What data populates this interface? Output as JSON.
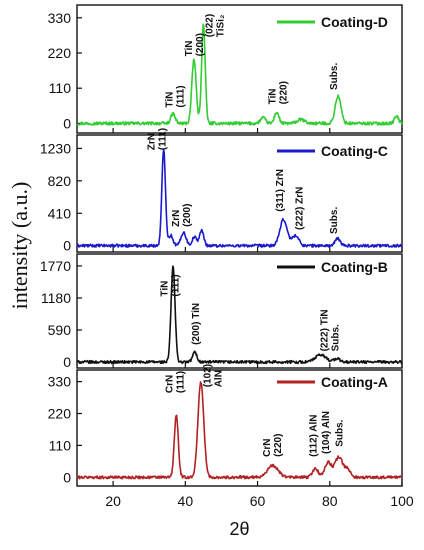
{
  "chart_data": {
    "type": "line",
    "xlabel": "2θ",
    "ylabel": "intensity (a.u.)",
    "xlim": [
      10,
      100
    ],
    "xticks": [
      20,
      40,
      60,
      80,
      100
    ],
    "xtick_labels": [
      "20",
      "40",
      "60",
      "80",
      "100"
    ],
    "panels": [
      {
        "name": "Coating-D",
        "color": "#33cc33",
        "ylim": [
          -30,
          370
        ],
        "yticks": [
          0,
          110,
          220,
          330
        ],
        "ytick_labels": [
          "0",
          "110",
          "220",
          "330"
        ],
        "peaks": [
          {
            "x": 36.6,
            "height": 30,
            "width": 0.6
          },
          {
            "x": 42.4,
            "height": 200,
            "width": 0.6
          },
          {
            "x": 45.0,
            "height": 310,
            "width": 0.5
          },
          {
            "x": 61.5,
            "height": 18,
            "width": 0.7
          },
          {
            "x": 65.3,
            "height": 35,
            "width": 0.6
          },
          {
            "x": 72.0,
            "height": 12,
            "width": 1.0
          },
          {
            "x": 82.3,
            "height": 85,
            "width": 0.8
          },
          {
            "x": 98.5,
            "height": 22,
            "width": 0.6
          }
        ],
        "annotations": [
          {
            "x": 36.5,
            "y": 40,
            "lines": [
              "TiN",
              "(111)"
            ]
          },
          {
            "x": 41.8,
            "y": 200,
            "lines": [
              "TiN",
              "(200)"
            ]
          },
          {
            "x": 47.5,
            "y": 260,
            "lines": [
              "(022)",
              "TiSi₂"
            ]
          },
          {
            "x": 65.0,
            "y": 50,
            "lines": [
              "TiN",
              "(220)"
            ]
          },
          {
            "x": 82.0,
            "y": 95,
            "lines": [
              "Subs."
            ]
          }
        ]
      },
      {
        "name": "Coating-C",
        "color": "#1a1acc",
        "ylim": [
          -80,
          1400
        ],
        "yticks": [
          0,
          410,
          820,
          1230
        ],
        "ytick_labels": [
          "0",
          "410",
          "820",
          "1230"
        ],
        "peaks": [
          {
            "x": 34.0,
            "height": 1220,
            "width": 0.5
          },
          {
            "x": 36.0,
            "height": 130,
            "width": 0.6
          },
          {
            "x": 39.5,
            "height": 170,
            "width": 0.7
          },
          {
            "x": 42.5,
            "height": 110,
            "width": 0.6
          },
          {
            "x": 44.5,
            "height": 190,
            "width": 0.6
          },
          {
            "x": 67.2,
            "height": 330,
            "width": 1.0
          },
          {
            "x": 70.5,
            "height": 130,
            "width": 0.9
          },
          {
            "x": 82.2,
            "height": 90,
            "width": 0.7
          }
        ],
        "annotations": [
          {
            "x": 31.5,
            "y": 1170,
            "lines": [
              "ZrN",
              "(111)"
            ]
          },
          {
            "x": 38.3,
            "y": 200,
            "lines": [
              "ZrN",
              "(200)"
            ]
          },
          {
            "x": 67.0,
            "y": 390,
            "lines": [
              "(311) ZrN"
            ]
          },
          {
            "x": 72.5,
            "y": 160,
            "lines": [
              "(222) ZrN"
            ]
          },
          {
            "x": 82.0,
            "y": 110,
            "lines": [
              "Subs."
            ]
          }
        ]
      },
      {
        "name": "Coating-B",
        "color": "#111111",
        "ylim": [
          -110,
          1990
        ],
        "yticks": [
          0,
          590,
          1180,
          1770
        ],
        "ytick_labels": [
          "0",
          "590",
          "1180",
          "1770"
        ],
        "peaks": [
          {
            "x": 36.6,
            "height": 1760,
            "width": 0.55
          },
          {
            "x": 42.6,
            "height": 180,
            "width": 0.6
          },
          {
            "x": 77.5,
            "height": 130,
            "width": 1.5
          },
          {
            "x": 82.0,
            "height": 60,
            "width": 0.8
          }
        ],
        "annotations": [
          {
            "x": 35.0,
            "y": 1150,
            "lines": [
              "TiN",
              "(111)"
            ]
          },
          {
            "x": 43.8,
            "y": 260,
            "lines": [
              "(200)  TiN"
            ]
          },
          {
            "x": 79.3,
            "y": 140,
            "lines": [
              "(222) TiN",
              "Subs."
            ]
          }
        ]
      },
      {
        "name": "Coating-A",
        "color": "#b22222",
        "ylim": [
          -30,
          370
        ],
        "yticks": [
          0,
          110,
          220,
          330
        ],
        "ytick_labels": [
          "0",
          "110",
          "220",
          "330"
        ],
        "peaks": [
          {
            "x": 37.5,
            "height": 215,
            "width": 0.55
          },
          {
            "x": 44.3,
            "height": 330,
            "width": 0.8
          },
          {
            "x": 64.2,
            "height": 40,
            "width": 1.5
          },
          {
            "x": 76.0,
            "height": 30,
            "width": 0.8
          },
          {
            "x": 79.5,
            "height": 50,
            "width": 0.9
          },
          {
            "x": 82.5,
            "height": 70,
            "width": 1.1
          },
          {
            "x": 85.0,
            "height": 25,
            "width": 0.8
          }
        ],
        "annotations": [
          {
            "x": 36.5,
            "y": 280,
            "lines": [
              "CrN",
              "(111)"
            ]
          },
          {
            "x": 47.0,
            "y": 300,
            "lines": [
              "(102)",
              "AlN"
            ]
          },
          {
            "x": 63.5,
            "y": 60,
            "lines": [
              "CrN",
              "(220)"
            ]
          },
          {
            "x": 76.3,
            "y": 60,
            "lines": [
              "(112) AlN"
            ]
          },
          {
            "x": 79.8,
            "y": 70,
            "lines": [
              "(104) AlN"
            ]
          },
          {
            "x": 83.5,
            "y": 95,
            "lines": [
              "Subs."
            ]
          }
        ]
      }
    ]
  }
}
